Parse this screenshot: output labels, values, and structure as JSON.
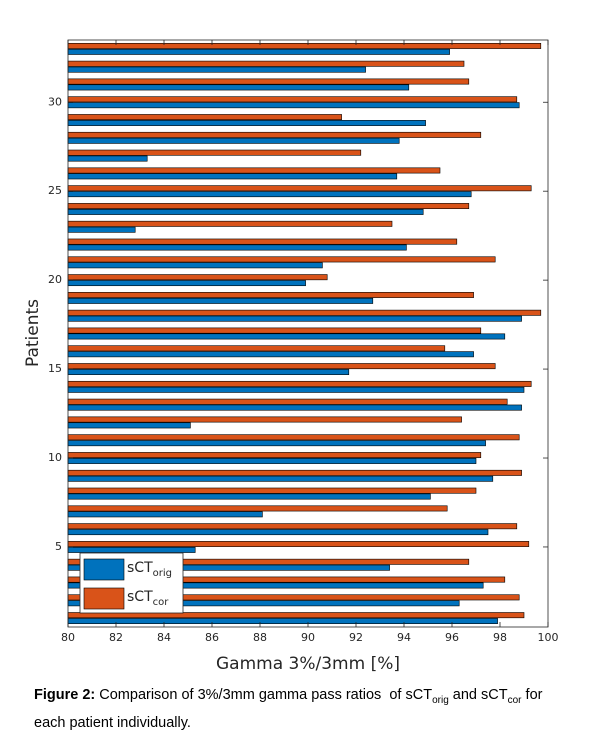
{
  "chart_data": {
    "type": "barh",
    "xlabel": "Gamma 3%/3mm [%]",
    "ylabel": "Patients",
    "y": [
      1,
      2,
      3,
      4,
      5,
      6,
      7,
      8,
      9,
      10,
      11,
      12,
      13,
      14,
      15,
      16,
      17,
      18,
      19,
      20,
      21,
      22,
      23,
      24,
      25,
      26,
      27,
      28,
      29,
      30,
      31,
      32,
      33
    ],
    "series": [
      {
        "name": "sCT",
        "subscript": "orig",
        "color": "#0072BD",
        "values": [
          97.9,
          96.3,
          97.3,
          93.4,
          85.3,
          97.5,
          88.1,
          95.1,
          97.7,
          97.0,
          97.4,
          85.1,
          98.9,
          99.0,
          91.7,
          96.9,
          98.2,
          98.9,
          92.7,
          89.9,
          90.6,
          94.1,
          82.8,
          94.8,
          96.8,
          93.7,
          83.3,
          93.8,
          94.9,
          98.8,
          94.2,
          92.4,
          95.9
        ]
      },
      {
        "name": "sCT",
        "subscript": "cor",
        "color": "#D95319",
        "values": [
          99.0,
          98.8,
          98.2,
          96.7,
          99.2,
          98.7,
          95.8,
          97.0,
          98.9,
          97.2,
          98.8,
          96.4,
          98.3,
          99.3,
          97.8,
          95.7,
          97.2,
          99.7,
          96.9,
          90.8,
          97.8,
          96.2,
          93.5,
          96.7,
          99.3,
          95.5,
          92.2,
          97.2,
          91.4,
          98.7,
          96.7,
          96.5,
          99.7
        ]
      }
    ],
    "xlim": [
      80,
      100
    ],
    "xticks": [
      80,
      82,
      84,
      86,
      88,
      90,
      92,
      94,
      96,
      98,
      100
    ],
    "ylim": [
      0.5,
      33.5
    ],
    "yticks": [
      5,
      10,
      15,
      20,
      25,
      30
    ],
    "legend": "lower left"
  },
  "caption": [
    {
      "text": "Figure 2:",
      "bold": true
    },
    {
      "text": " Comparison of 3%/3mm gamma pass ratios  of sCT"
    },
    {
      "text": "orig",
      "sub": true
    },
    {
      "text": " and sCT"
    },
    {
      "text": "cor",
      "sub": true
    },
    {
      "text": " for each patient individually."
    }
  ]
}
